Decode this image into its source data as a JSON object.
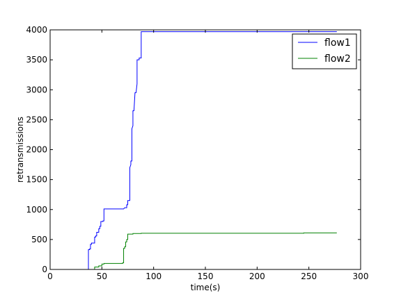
{
  "chart_data": {
    "type": "line",
    "xlabel": "time(s)",
    "ylabel": "retransmissions",
    "xlim": [
      0,
      300
    ],
    "ylim": [
      0,
      4000
    ],
    "xticks": [
      0,
      50,
      100,
      150,
      200,
      250,
      300
    ],
    "yticks": [
      0,
      500,
      1000,
      1500,
      2000,
      2500,
      3000,
      3500,
      4000
    ],
    "grid": false,
    "legend_position": "top-right",
    "series": [
      {
        "name": "flow1",
        "color": "#0000ff",
        "points": [
          [
            0,
            0
          ],
          [
            37,
            0
          ],
          [
            37,
            330
          ],
          [
            38,
            330
          ],
          [
            38,
            340
          ],
          [
            39,
            340
          ],
          [
            39,
            420
          ],
          [
            40,
            420
          ],
          [
            40,
            440
          ],
          [
            43,
            440
          ],
          [
            43,
            540
          ],
          [
            44,
            540
          ],
          [
            44,
            560
          ],
          [
            45,
            560
          ],
          [
            45,
            620
          ],
          [
            47,
            620
          ],
          [
            47,
            680
          ],
          [
            48,
            680
          ],
          [
            48,
            720
          ],
          [
            49,
            720
          ],
          [
            49,
            800
          ],
          [
            51,
            800
          ],
          [
            51,
            810
          ],
          [
            52,
            810
          ],
          [
            52,
            1010
          ],
          [
            71,
            1010
          ],
          [
            72,
            1030
          ],
          [
            74,
            1030
          ],
          [
            74,
            1080
          ],
          [
            75,
            1080
          ],
          [
            75,
            1150
          ],
          [
            77,
            1150
          ],
          [
            77,
            1700
          ],
          [
            78,
            1750
          ],
          [
            78,
            1810
          ],
          [
            79,
            1810
          ],
          [
            79,
            2350
          ],
          [
            80,
            2400
          ],
          [
            80,
            2650
          ],
          [
            81,
            2650
          ],
          [
            82,
            2950
          ],
          [
            83,
            2950
          ],
          [
            84,
            3100
          ],
          [
            84,
            3500
          ],
          [
            86,
            3500
          ],
          [
            86,
            3530
          ],
          [
            88,
            3530
          ],
          [
            88,
            3970
          ],
          [
            277,
            3970
          ]
        ]
      },
      {
        "name": "flow2",
        "color": "#008000",
        "points": [
          [
            0,
            0
          ],
          [
            43,
            0
          ],
          [
            43,
            40
          ],
          [
            47,
            40
          ],
          [
            47,
            60
          ],
          [
            50,
            60
          ],
          [
            50,
            90
          ],
          [
            52,
            90
          ],
          [
            52,
            100
          ],
          [
            70,
            100
          ],
          [
            70,
            110
          ],
          [
            71,
            110
          ],
          [
            71,
            350
          ],
          [
            72,
            350
          ],
          [
            72,
            380
          ],
          [
            73,
            380
          ],
          [
            73,
            460
          ],
          [
            74,
            460
          ],
          [
            74,
            500
          ],
          [
            75,
            500
          ],
          [
            75,
            590
          ],
          [
            80,
            590
          ],
          [
            80,
            600
          ],
          [
            88,
            600
          ],
          [
            88,
            605
          ],
          [
            245,
            605
          ],
          [
            245,
            610
          ],
          [
            277,
            610
          ]
        ]
      }
    ]
  }
}
